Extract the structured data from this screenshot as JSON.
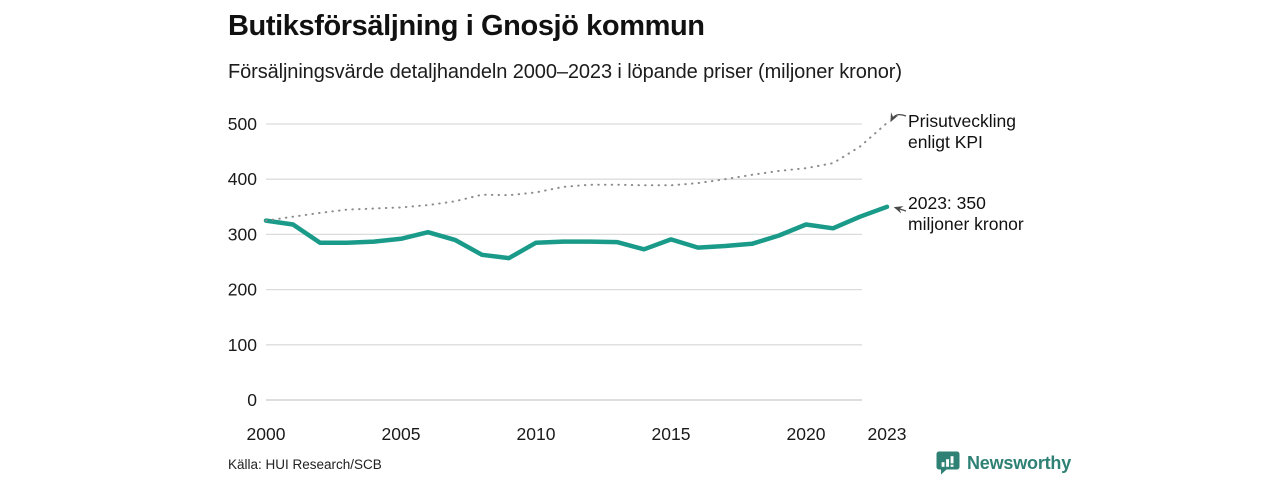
{
  "chart_data": {
    "type": "line",
    "title": "Butiksförsäljning i Gnosjö kommun",
    "subtitle": "Försäljningsvärde detaljhandeln 2000–2023 i löpande priser (miljoner kronor)",
    "x": [
      2000,
      2001,
      2002,
      2003,
      2004,
      2005,
      2006,
      2007,
      2008,
      2009,
      2010,
      2011,
      2012,
      2013,
      2014,
      2015,
      2016,
      2017,
      2018,
      2019,
      2020,
      2021,
      2022,
      2023
    ],
    "series": [
      {
        "name": "Butiksförsäljning (miljoner kronor)",
        "style": "solid",
        "color": "#1a9b8a",
        "values": [
          325,
          318,
          285,
          285,
          287,
          292,
          304,
          290,
          263,
          257,
          285,
          287,
          287,
          286,
          273,
          291,
          276,
          279,
          283,
          298,
          318,
          311,
          332,
          350
        ]
      },
      {
        "name": "Prisutveckling enligt KPI",
        "style": "dotted",
        "color": "#8c8c8c",
        "values": [
          325,
          332,
          339,
          345,
          347,
          349,
          353,
          360,
          372,
          371,
          376,
          386,
          390,
          390,
          389,
          389,
          393,
          400,
          408,
          415,
          420,
          429,
          459,
          502
        ]
      }
    ],
    "xticks": [
      "2000",
      "2005",
      "2010",
      "2015",
      "2020",
      "2023"
    ],
    "yticks": [
      0,
      100,
      200,
      300,
      400,
      500
    ],
    "ylim": [
      0,
      520
    ],
    "xlabel": "",
    "ylabel": "",
    "grid": true,
    "legend_position": "none",
    "annotations": [
      {
        "target": "kpi-line-end",
        "lines": [
          "Prisutveckling",
          "enligt KPI"
        ]
      },
      {
        "target": "sales-line-end",
        "lines": [
          "2023: 350",
          "miljoner kronor"
        ]
      }
    ]
  },
  "footer": {
    "source": "Källa: HUI Research/SCB",
    "brand": "Newsworthy"
  },
  "colors": {
    "accent": "#1a9b8a",
    "kpi_dotted": "#8c8c8c",
    "grid": "#dcdcdc",
    "axis_zero": "#c9c9c9",
    "tick_text": "#1a1a1a",
    "arrow": "#4a4a4a",
    "brand_teal": "#2e8174"
  }
}
